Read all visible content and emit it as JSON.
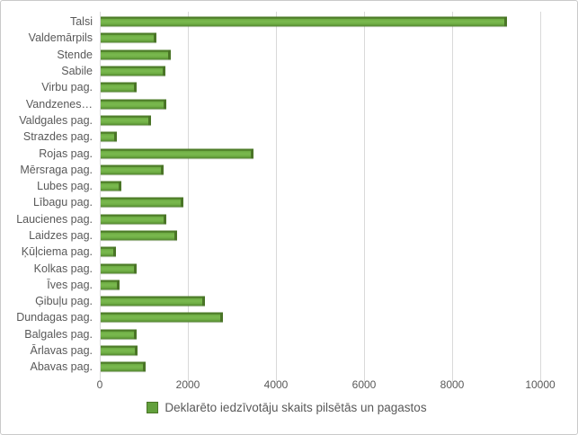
{
  "chart_data": {
    "type": "bar",
    "orientation": "horizontal",
    "title": "",
    "legend": "Deklarēto iedzīvotāju skaits pilsētās un pagastos",
    "legend_position": "bottom-center",
    "grid": "vertical-only",
    "xlim": [
      0,
      10000
    ],
    "x_ticks": [
      0,
      2000,
      4000,
      6000,
      8000,
      10000
    ],
    "categories": [
      "Talsi",
      "Valdemārpils",
      "Stende",
      "Sabile",
      "Virbu pag.",
      "Vandzenes…",
      "Valdgales pag.",
      "Strazdes pag.",
      "Rojas pag.",
      "Mērsraga pag.",
      "Lubes pag.",
      "Lībagu pag.",
      "Laucienes pag.",
      "Laidzes pag.",
      "Ķūļciema pag.",
      "Kolkas pag.",
      "Īves pag.",
      "Ģibuļu pag.",
      "Dundagas pag.",
      "Balgales pag.",
      "Ārlavas pag.",
      "Abavas pag."
    ],
    "values": [
      9160,
      1200,
      1530,
      1410,
      760,
      1430,
      1080,
      310,
      3400,
      1370,
      410,
      1820,
      1430,
      1670,
      290,
      760,
      370,
      2310,
      2710,
      760,
      770,
      960
    ]
  },
  "colors": {
    "bar_fill": "#6fae45",
    "bar_edge": "#4a7527",
    "gridline": "#d9d9d9",
    "axis_text": "#595959",
    "label_text": "#595959",
    "frame_border": "#c9c9c9",
    "background": "#ffffff"
  }
}
